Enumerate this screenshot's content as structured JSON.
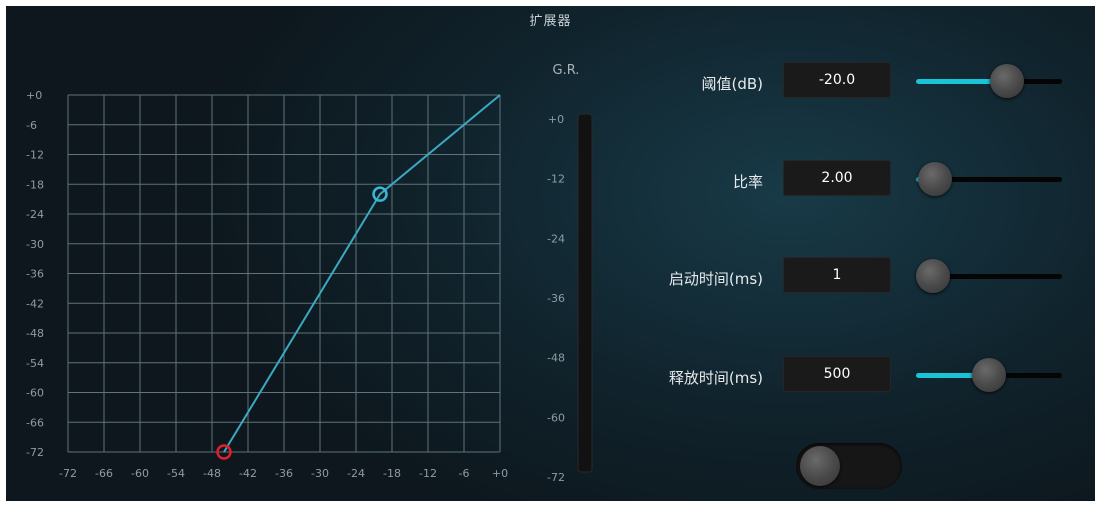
{
  "window": {
    "title": "扩展器"
  },
  "graph": {
    "y_ticks": [
      "+0",
      "-6",
      "-12",
      "-18",
      "-24",
      "-30",
      "-36",
      "-42",
      "-48",
      "-54",
      "-60",
      "-66",
      "-72"
    ],
    "x_ticks": [
      "-72",
      "-66",
      "-60",
      "-54",
      "-48",
      "-42",
      "-36",
      "-30",
      "-24",
      "-18",
      "-12",
      "-6",
      "+0"
    ],
    "curve_points": [
      [
        -46,
        -72
      ],
      [
        -20,
        -20
      ],
      [
        0,
        0
      ]
    ],
    "threshold_point": [
      -20,
      -20
    ],
    "floor_point": [
      -46,
      -72
    ],
    "colors": {
      "curve": "#3aa9c2",
      "threshold_marker": "#3ab6d6",
      "floor_marker": "#e01f2a",
      "grid": "#5f7379"
    }
  },
  "gr_meter": {
    "label": "G.R.",
    "ticks": [
      "+0",
      "-12",
      "-24",
      "-36",
      "-48",
      "-60",
      "-72"
    ]
  },
  "controls": {
    "threshold": {
      "label": "阈值(dB)",
      "value": "-20.0",
      "slider_fraction": 0.66
    },
    "ratio": {
      "label": "比率",
      "value": "2.00",
      "slider_fraction": 0.02
    },
    "attack": {
      "label": "启动时间(ms)",
      "value": "1",
      "slider_fraction": 0.0
    },
    "release": {
      "label": "释放时间(ms)",
      "value": "500",
      "slider_fraction": 0.5
    }
  },
  "toggle": {
    "state": "off"
  },
  "accent_color": "#19c4d6"
}
